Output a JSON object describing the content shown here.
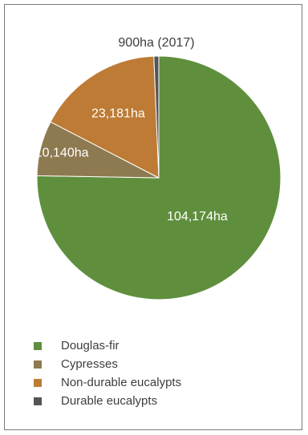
{
  "chart_data": {
    "type": "pie",
    "categories": [
      "Douglas-fir",
      "Cypresses",
      "Non-durable eucalypts",
      "Durable eucalypts"
    ],
    "values": [
      104174,
      10140,
      23181,
      900
    ],
    "data_labels": [
      "104,174ha",
      "10,140ha",
      "23,181ha",
      "900ha (2017)"
    ],
    "colors": [
      "#5f8f3d",
      "#8e7a50",
      "#bd7b35",
      "#555555"
    ],
    "legend_position": "bottom-left",
    "start_angle": "12 o'clock, clockwise"
  }
}
